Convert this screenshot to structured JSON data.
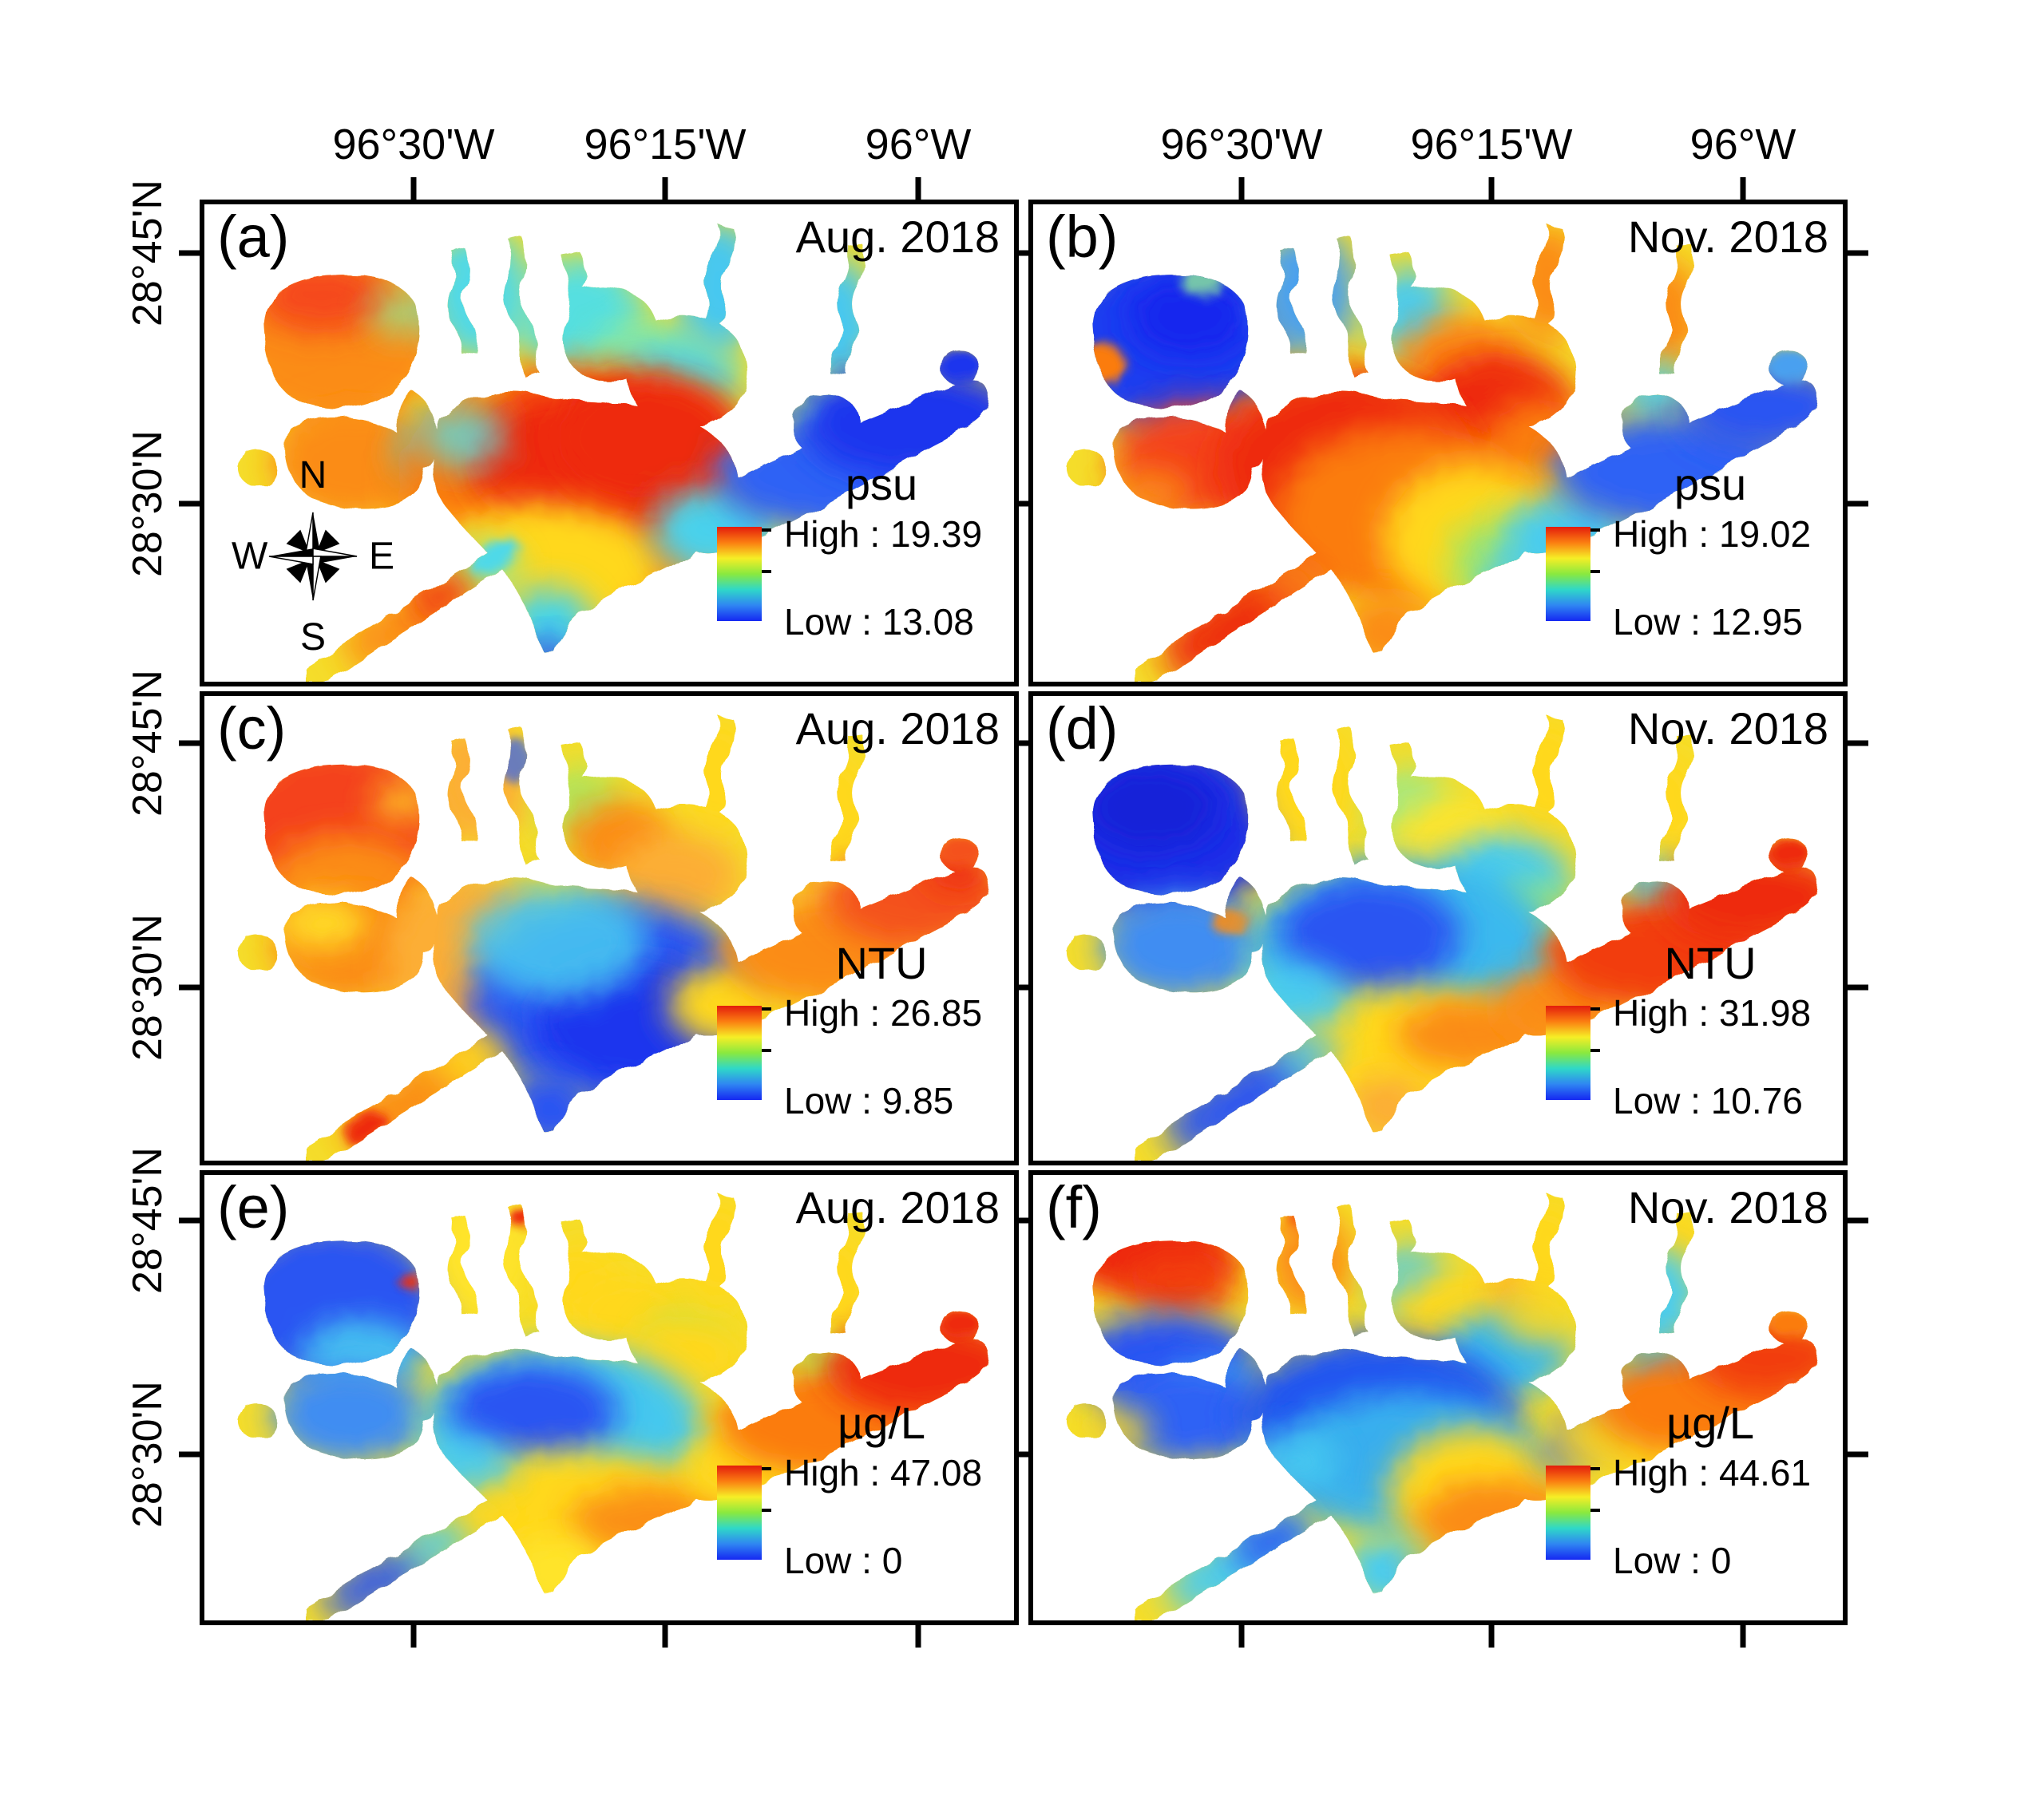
{
  "figure": {
    "background": "#ffffff"
  },
  "axes": {
    "lon_ticks": [
      "96°30'W",
      "96°15'W",
      "96°W"
    ],
    "lat_ticks": [
      "28°45'N",
      "28°30'N"
    ]
  },
  "compass": {
    "n": "N",
    "s": "S",
    "e": "E",
    "w": "W"
  },
  "colorbar": {
    "stops": [
      "#e31c0c",
      "#fb7d11",
      "#f6ee26",
      "#8ae93f",
      "#2fd8c8",
      "#2f86f2",
      "#1528f2"
    ]
  },
  "panels": [
    {
      "id": "a",
      "letter": "(a)",
      "date": "Aug. 2018",
      "legend": {
        "title": "psu",
        "high_label": "High : 19.39",
        "low_label": "Low : 13.08",
        "high": 19.39,
        "low": 13.08
      }
    },
    {
      "id": "b",
      "letter": "(b)",
      "date": "Nov. 2018",
      "legend": {
        "title": "psu",
        "high_label": "High : 19.02",
        "low_label": "Low : 12.95",
        "high": 19.02,
        "low": 12.95
      }
    },
    {
      "id": "c",
      "letter": "(c)",
      "date": "Aug. 2018",
      "legend": {
        "title": "NTU",
        "high_label": "High : 26.85",
        "low_label": "Low : 9.85",
        "high": 26.85,
        "low": 9.85
      }
    },
    {
      "id": "d",
      "letter": "(d)",
      "date": "Nov. 2018",
      "legend": {
        "title": "NTU",
        "high_label": "High : 31.98",
        "low_label": "Low : 10.76",
        "high": 31.98,
        "low": 10.76
      }
    },
    {
      "id": "e",
      "letter": "(e)",
      "date": "Aug. 2018",
      "legend": {
        "title": "µg/L",
        "high_label": "High : 47.08",
        "low_label": "Low : 0",
        "high": 47.08,
        "low": 0
      }
    },
    {
      "id": "f",
      "letter": "(f)",
      "date": "Nov. 2018",
      "legend": {
        "title": "µg/L",
        "high_label": "High : 44.61",
        "low_label": "Low : 0",
        "high": 44.61,
        "low": 0
      }
    }
  ]
}
